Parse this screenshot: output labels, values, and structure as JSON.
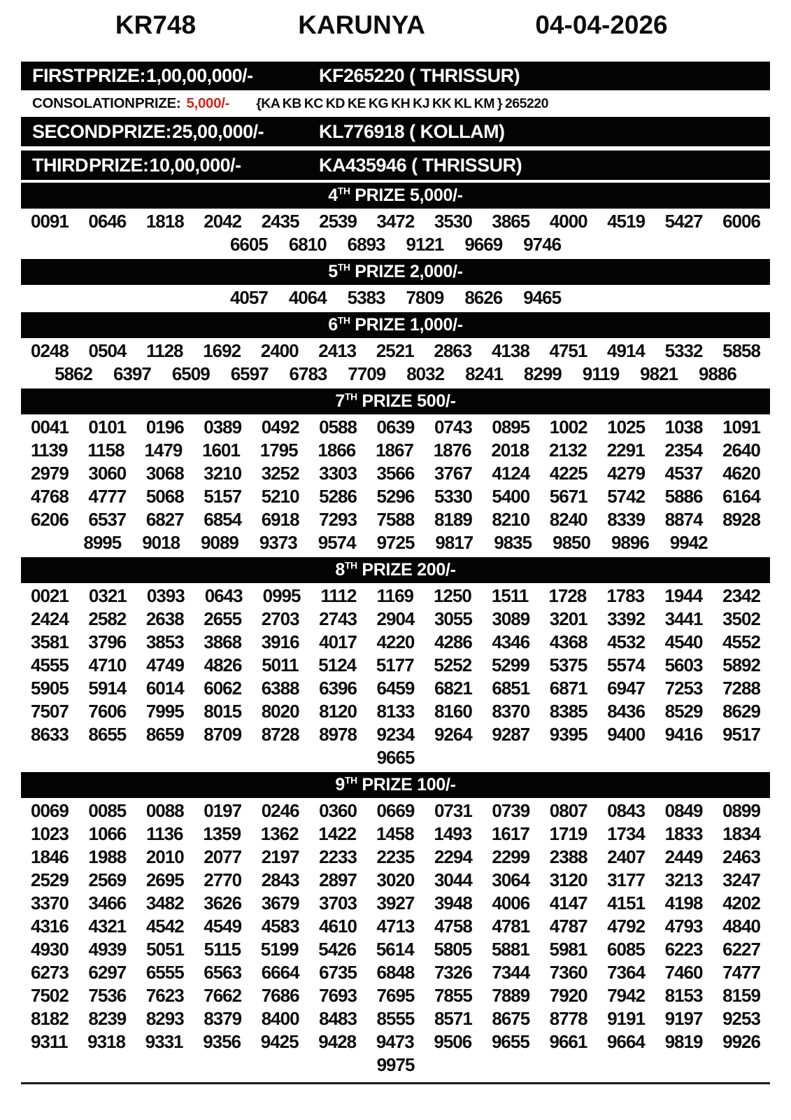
{
  "colors": {
    "bar_background": "#000000",
    "bar_text": "#ffffff",
    "body_text": "#0d0d0d",
    "highlight_red": "#d3261b"
  },
  "header": {
    "draw_code": "KR748",
    "lottery_name": "KARUNYA",
    "draw_date": "04-04-2026"
  },
  "main_prizes": {
    "first": {
      "label": "FIRST PRIZE: 1,00,00,000/-",
      "winner": "KF265220 ( THRISSUR)"
    },
    "consolation": {
      "label": "CONSOLATION PRIZE:",
      "amount": "5,000/-",
      "series": "{KA KB KC KD KE KG KH KJ KK KL KM } 265220"
    },
    "second": {
      "label": "SECOND PRIZE: 25,00,000/-",
      "winner": "KL776918 ( KOLLAM)"
    },
    "third": {
      "label": "THIRD PRIZE: 10,00,000/-",
      "winner": "KA435946 ( THRISSUR)"
    }
  },
  "sections": [
    {
      "id": "4th",
      "ordinal": "4",
      "sup": "TH",
      "rest": " PRIZE 5,000/-",
      "rows": [
        [
          "0091",
          "0646",
          "1818",
          "2042",
          "2435",
          "2539",
          "3472",
          "3530",
          "3865",
          "4000",
          "4519",
          "5427",
          "6006"
        ],
        [
          "6605",
          "6810",
          "6893",
          "9121",
          "9669",
          "9746"
        ]
      ]
    },
    {
      "id": "5th",
      "ordinal": "5",
      "sup": "TH",
      "rest": " PRIZE 2,000/-",
      "rows": [
        [
          "4057",
          "4064",
          "5383",
          "7809",
          "8626",
          "9465"
        ]
      ]
    },
    {
      "id": "6th",
      "ordinal": "6",
      "sup": "TH",
      "rest": " PRIZE 1,000/-",
      "rows": [
        [
          "0248",
          "0504",
          "1128",
          "1692",
          "2400",
          "2413",
          "2521",
          "2863",
          "4138",
          "4751",
          "4914",
          "5332",
          "5858"
        ],
        [
          "5862",
          "6397",
          "6509",
          "6597",
          "6783",
          "7709",
          "8032",
          "8241",
          "8299",
          "9119",
          "9821",
          "9886"
        ]
      ]
    },
    {
      "id": "7th",
      "ordinal": "7",
      "sup": "TH",
      "rest": " PRIZE 500/-",
      "rows": [
        [
          "0041",
          "0101",
          "0196",
          "0389",
          "0492",
          "0588",
          "0639",
          "0743",
          "0895",
          "1002",
          "1025",
          "1038",
          "1091"
        ],
        [
          "1139",
          "1158",
          "1479",
          "1601",
          "1795",
          "1866",
          "1867",
          "1876",
          "2018",
          "2132",
          "2291",
          "2354",
          "2640"
        ],
        [
          "2979",
          "3060",
          "3068",
          "3210",
          "3252",
          "3303",
          "3566",
          "3767",
          "4124",
          "4225",
          "4279",
          "4537",
          "4620"
        ],
        [
          "4768",
          "4777",
          "5068",
          "5157",
          "5210",
          "5286",
          "5296",
          "5330",
          "5400",
          "5671",
          "5742",
          "5886",
          "6164"
        ],
        [
          "6206",
          "6537",
          "6827",
          "6854",
          "6918",
          "7293",
          "7588",
          "8189",
          "8210",
          "8240",
          "8339",
          "8874",
          "8928"
        ],
        [
          "8995",
          "9018",
          "9089",
          "9373",
          "9574",
          "9725",
          "9817",
          "9835",
          "9850",
          "9896",
          "9942"
        ]
      ]
    },
    {
      "id": "8th",
      "ordinal": "8",
      "sup": "TH",
      "rest": " PRIZE 200/-",
      "rows": [
        [
          "0021",
          "0321",
          "0393",
          "0643",
          "0995",
          "1112",
          "1169",
          "1250",
          "1511",
          "1728",
          "1783",
          "1944",
          "2342"
        ],
        [
          "2424",
          "2582",
          "2638",
          "2655",
          "2703",
          "2743",
          "2904",
          "3055",
          "3089",
          "3201",
          "3392",
          "3441",
          "3502"
        ],
        [
          "3581",
          "3796",
          "3853",
          "3868",
          "3916",
          "4017",
          "4220",
          "4286",
          "4346",
          "4368",
          "4532",
          "4540",
          "4552"
        ],
        [
          "4555",
          "4710",
          "4749",
          "4826",
          "5011",
          "5124",
          "5177",
          "5252",
          "5299",
          "5375",
          "5574",
          "5603",
          "5892"
        ],
        [
          "5905",
          "5914",
          "6014",
          "6062",
          "6388",
          "6396",
          "6459",
          "6821",
          "6851",
          "6871",
          "6947",
          "7253",
          "7288"
        ],
        [
          "7507",
          "7606",
          "7995",
          "8015",
          "8020",
          "8120",
          "8133",
          "8160",
          "8370",
          "8385",
          "8436",
          "8529",
          "8629"
        ],
        [
          "8633",
          "8655",
          "8659",
          "8709",
          "8728",
          "8978",
          "9234",
          "9264",
          "9287",
          "9395",
          "9400",
          "9416",
          "9517"
        ],
        [
          "9665"
        ]
      ]
    },
    {
      "id": "9th",
      "ordinal": "9",
      "sup": "TH",
      "rest": " PRIZE 100/-",
      "rows": [
        [
          "0069",
          "0085",
          "0088",
          "0197",
          "0246",
          "0360",
          "0669",
          "0731",
          "0739",
          "0807",
          "0843",
          "0849",
          "0899"
        ],
        [
          "1023",
          "1066",
          "1136",
          "1359",
          "1362",
          "1422",
          "1458",
          "1493",
          "1617",
          "1719",
          "1734",
          "1833",
          "1834"
        ],
        [
          "1846",
          "1988",
          "2010",
          "2077",
          "2197",
          "2233",
          "2235",
          "2294",
          "2299",
          "2388",
          "2407",
          "2449",
          "2463"
        ],
        [
          "2529",
          "2569",
          "2695",
          "2770",
          "2843",
          "2897",
          "3020",
          "3044",
          "3064",
          "3120",
          "3177",
          "3213",
          "3247"
        ],
        [
          "3370",
          "3466",
          "3482",
          "3626",
          "3679",
          "3703",
          "3927",
          "3948",
          "4006",
          "4147",
          "4151",
          "4198",
          "4202"
        ],
        [
          "4316",
          "4321",
          "4542",
          "4549",
          "4583",
          "4610",
          "4713",
          "4758",
          "4781",
          "4787",
          "4792",
          "4793",
          "4840"
        ],
        [
          "4930",
          "4939",
          "5051",
          "5115",
          "5199",
          "5426",
          "5614",
          "5805",
          "5881",
          "5981",
          "6085",
          "6223",
          "6227"
        ],
        [
          "6273",
          "6297",
          "6555",
          "6563",
          "6664",
          "6735",
          "6848",
          "7326",
          "7344",
          "7360",
          "7364",
          "7460",
          "7477"
        ],
        [
          "7502",
          "7536",
          "7623",
          "7662",
          "7686",
          "7693",
          "7695",
          "7855",
          "7889",
          "7920",
          "7942",
          "8153",
          "8159"
        ],
        [
          "8182",
          "8239",
          "8293",
          "8379",
          "8400",
          "8483",
          "8555",
          "8571",
          "8675",
          "8778",
          "9191",
          "9197",
          "9253"
        ],
        [
          "9311",
          "9318",
          "9331",
          "9356",
          "9425",
          "9428",
          "9473",
          "9506",
          "9655",
          "9661",
          "9664",
          "9819",
          "9926"
        ],
        [
          "9975"
        ]
      ]
    }
  ]
}
